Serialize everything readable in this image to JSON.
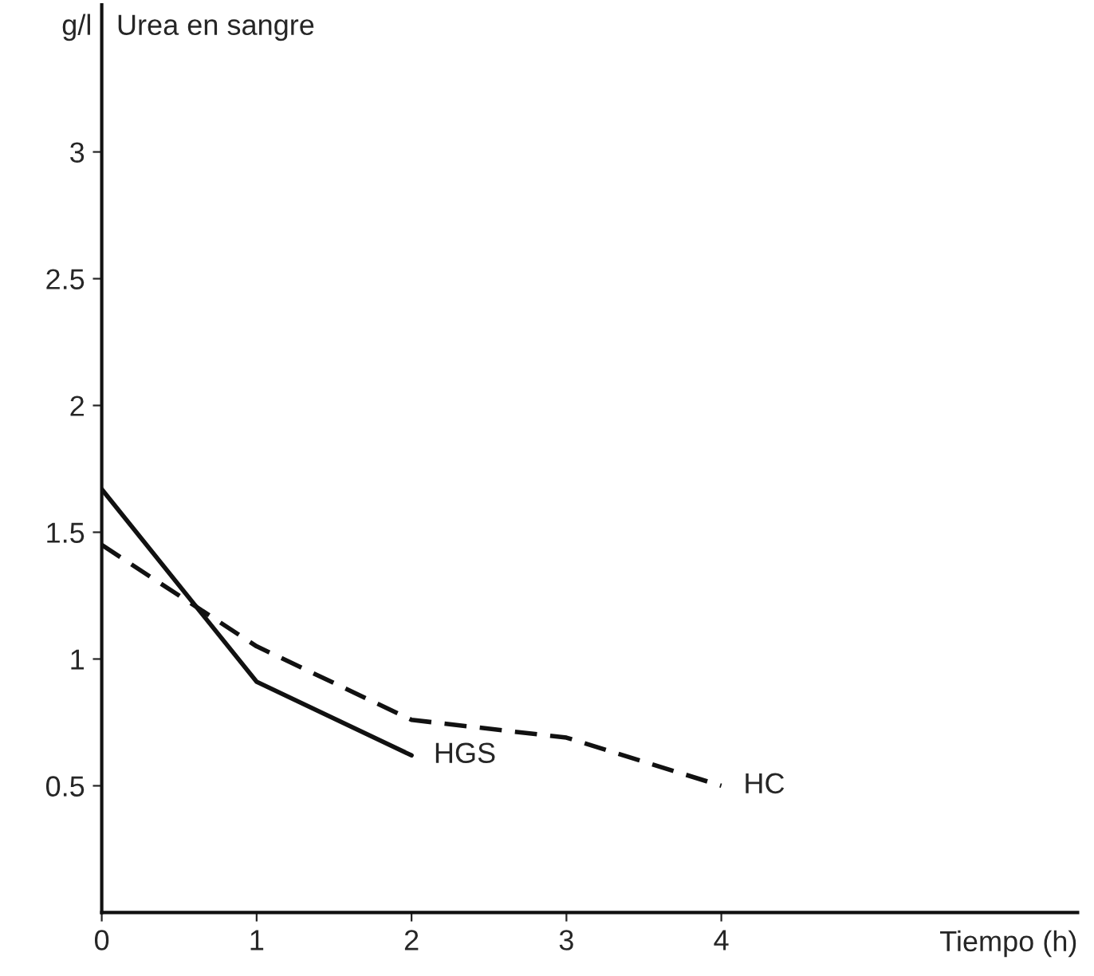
{
  "chart_data": {
    "type": "line",
    "title": "Urea en sangre",
    "ylabel": "g/l",
    "xlabel": "Tiempo (h)",
    "x": [
      0,
      1,
      2,
      3,
      4
    ],
    "series": [
      {
        "name": "HGS",
        "color": "#111111",
        "line_style": "solid",
        "values": [
          1.67,
          0.91,
          0.62,
          null,
          null
        ]
      },
      {
        "name": "HC",
        "color": "#111111",
        "line_style": "dashed",
        "values": [
          1.45,
          1.05,
          0.76,
          0.69,
          0.5
        ]
      }
    ],
    "xlim": [
      0,
      6.3
    ],
    "ylim": [
      0,
      3.58
    ],
    "xticks": [
      0,
      1,
      2,
      3,
      4
    ],
    "yticks": [
      0.5,
      1,
      1.5,
      2,
      2.5,
      3
    ],
    "grid": false,
    "legend": false,
    "marker": "none"
  }
}
